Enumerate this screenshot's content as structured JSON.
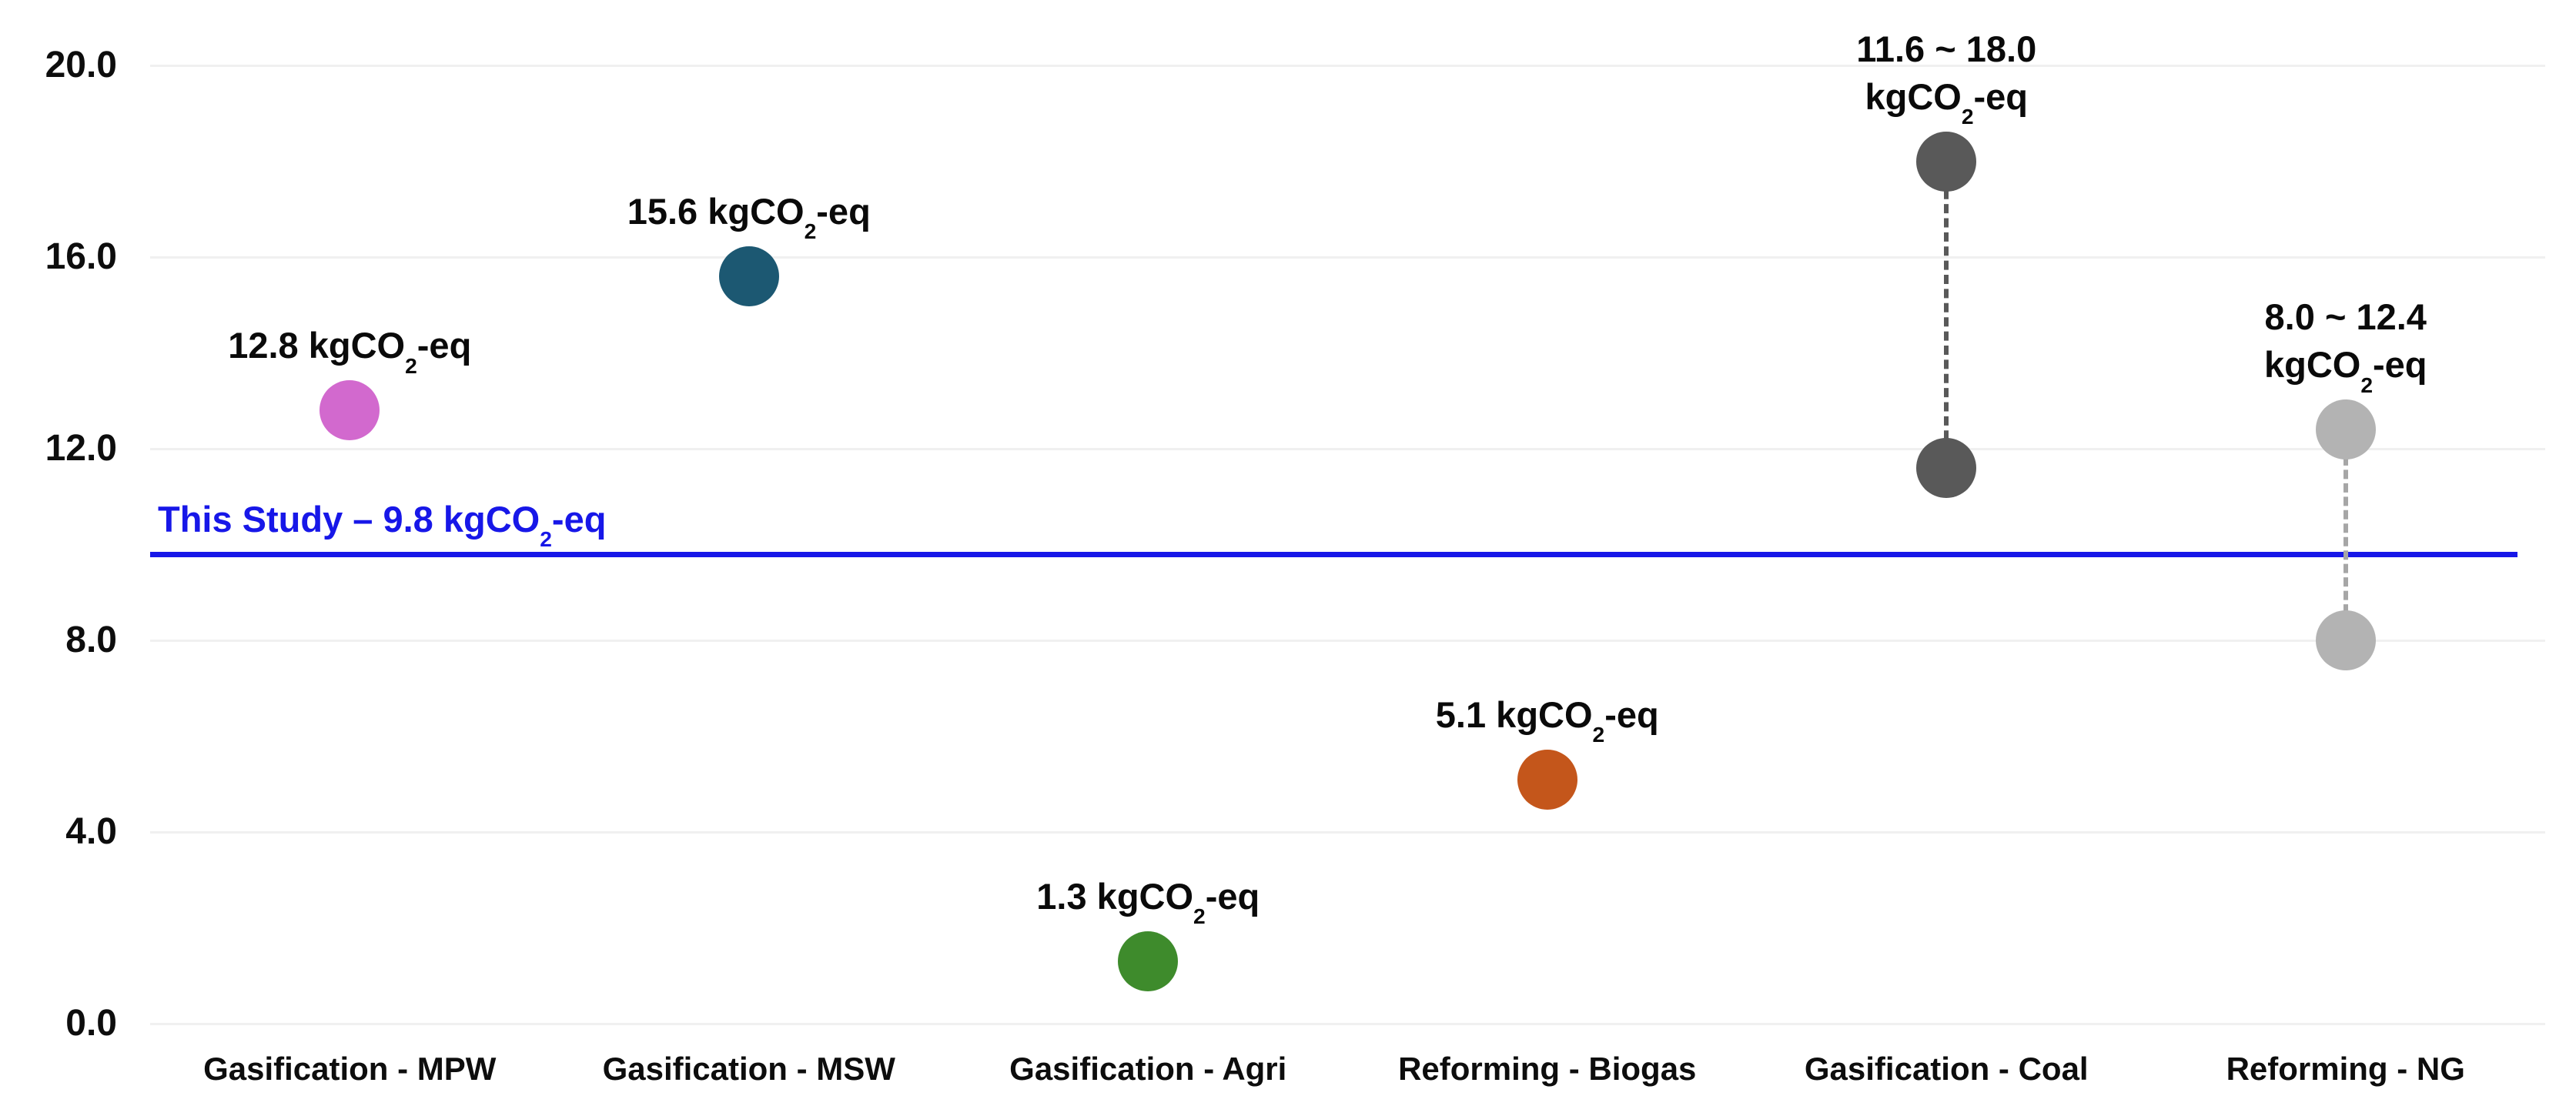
{
  "chart_data": {
    "type": "scatter",
    "title": "",
    "xlabel": "",
    "ylabel": "",
    "ylim": [
      0,
      20
    ],
    "yticks": [
      0,
      4,
      8,
      12,
      16,
      20
    ],
    "ytick_labels": [
      "0.0",
      "4.0",
      "8.0",
      "12.0",
      "16.0",
      "20.0"
    ],
    "grid": "horizontal",
    "legend": "none",
    "categories": [
      "Gasification - MPW",
      "Gasification - MSW",
      "Gasification - Agri",
      "Reforming - Biogas",
      "Gasification - Coal",
      "Reforming - NG"
    ],
    "series": [
      {
        "name": "Gasification - MPW",
        "values": [
          12.8
        ],
        "annotation": "12.8 kgCO_2_-eq",
        "color": "#d269ce",
        "connector": null
      },
      {
        "name": "Gasification - MSW",
        "values": [
          15.6
        ],
        "annotation": "15.6 kgCO_2_-eq",
        "color": "#1c5872",
        "connector": null
      },
      {
        "name": "Gasification - Agri",
        "values": [
          1.3
        ],
        "annotation": "1.3 kgCO_2_-eq",
        "color": "#3e8b2c",
        "connector": null
      },
      {
        "name": "Reforming - Biogas",
        "values": [
          5.1
        ],
        "annotation": "5.1 kgCO_2_-eq",
        "color": "#c4561b",
        "connector": null
      },
      {
        "name": "Gasification - Coal",
        "values": [
          11.6,
          18.0
        ],
        "annotation": "11.6 ~ 18.0\nkgCO_2_-eq",
        "color": "#595959",
        "connector": {
          "style": "dashed",
          "color": "#595959"
        }
      },
      {
        "name": "Reforming - NG",
        "values": [
          8.0,
          12.4
        ],
        "annotation": "8.0 ~ 12.4\nkgCO_2_-eq",
        "color": "#b3b3b3",
        "connector": {
          "style": "dashed",
          "color": "#a6a6a6"
        }
      }
    ],
    "reference_line": {
      "value": 9.8,
      "label": "This Study – 9.8 kgCO_2_-eq",
      "color": "#1717e8"
    },
    "unit": "kgCO2-eq",
    "gridline_color": "#f0f0f0"
  }
}
